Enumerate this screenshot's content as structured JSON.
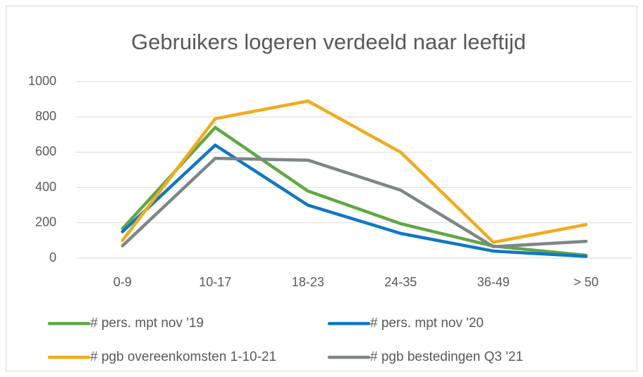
{
  "chart_data": {
    "type": "line",
    "title": "Gebruikers logeren verdeeld naar leeftijd",
    "categories": [
      "0-9",
      "10-17",
      "18-23",
      "24-35",
      "36-49",
      "> 50"
    ],
    "series": [
      {
        "name": "# pers. mpt nov '19",
        "color": "#5fa843",
        "values": [
          167,
          740,
          380,
          195,
          68,
          16
        ]
      },
      {
        "name": "# pers. mpt nov '20",
        "color": "#0f78c4",
        "values": [
          150,
          640,
          300,
          140,
          40,
          10
        ]
      },
      {
        "name": "# pgb overeenkomsten 1-10-21",
        "color": "#f2ab1c",
        "values": [
          100,
          790,
          890,
          600,
          90,
          190
        ]
      },
      {
        "name": "# pgb bestedingen Q3 '21",
        "color": "#7d8688",
        "values": [
          70,
          565,
          555,
          385,
          65,
          95
        ]
      }
    ],
    "ylim": [
      0,
      1000
    ],
    "yticks": [
      0,
      200,
      400,
      600,
      800,
      1000
    ],
    "grid": true,
    "legend": "bottom"
  }
}
